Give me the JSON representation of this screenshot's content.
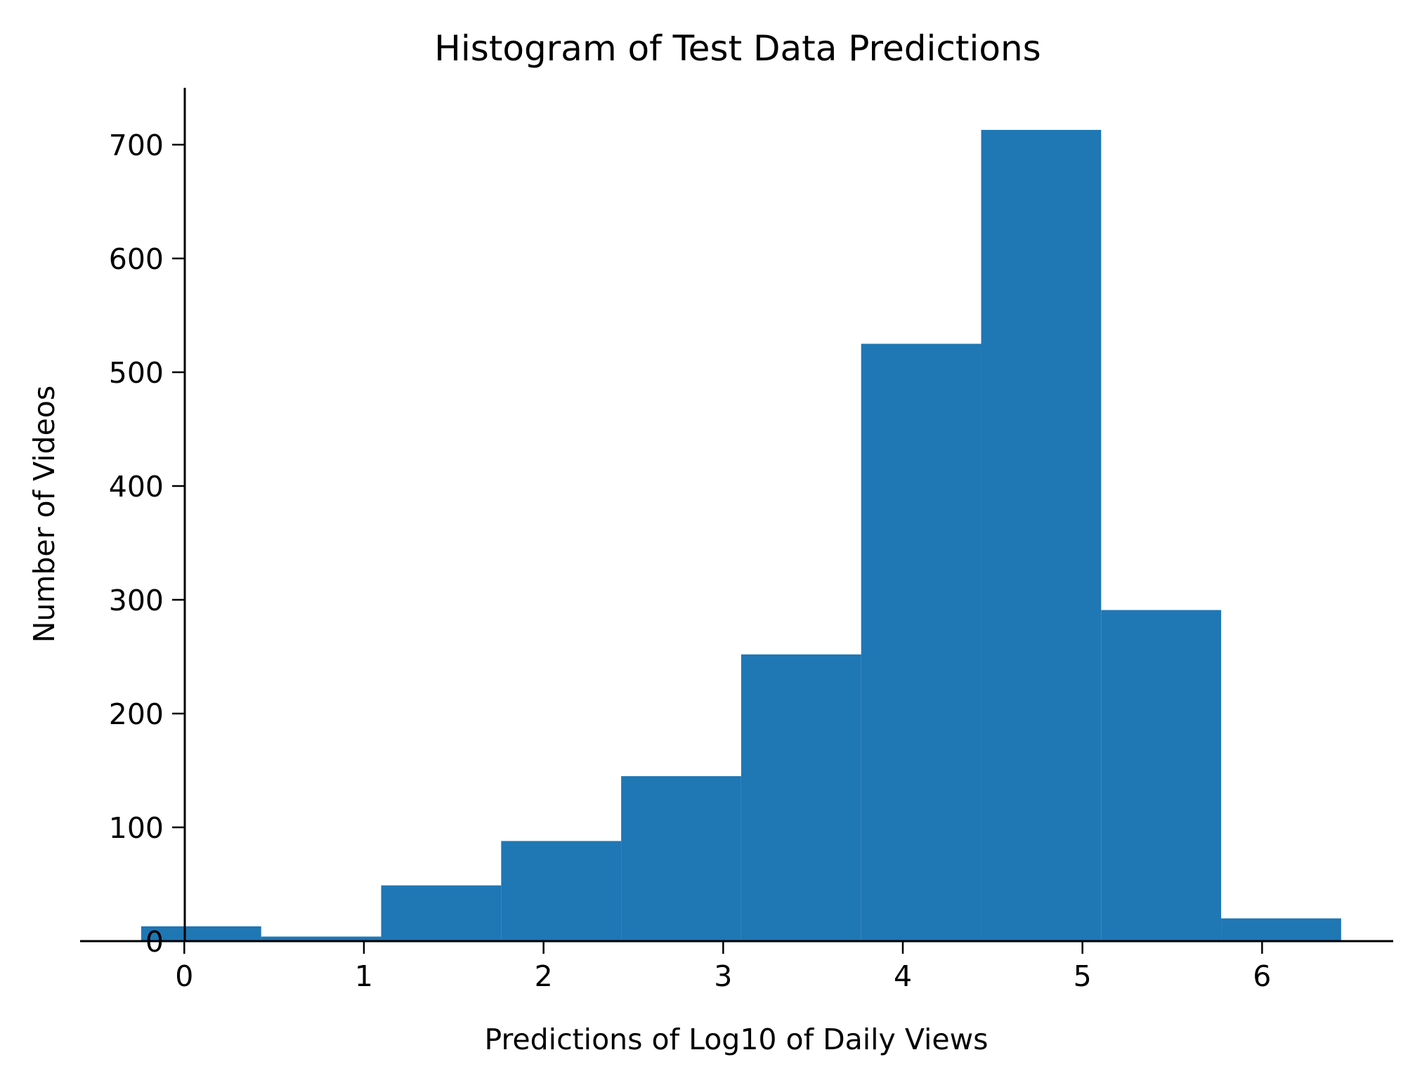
{
  "chart_data": {
    "type": "bar",
    "title": "Histogram of Test Data Predictions",
    "xlabel": "Predictions of Log10 of Daily Views",
    "ylabel": "Number of Videos",
    "xlim": [
      -0.58,
      6.73
    ],
    "ylim": [
      0,
      750
    ],
    "bin_edges": [
      -0.24,
      0.428,
      1.096,
      1.764,
      2.432,
      3.1,
      3.768,
      4.436,
      5.104,
      5.772,
      6.44
    ],
    "values": [
      13,
      4,
      49,
      88,
      145,
      252,
      525,
      713,
      291,
      20
    ],
    "x_ticks": [
      {
        "value": 0,
        "label": "0"
      },
      {
        "value": 1,
        "label": "1"
      },
      {
        "value": 2,
        "label": "2"
      },
      {
        "value": 3,
        "label": "3"
      },
      {
        "value": 4,
        "label": "4"
      },
      {
        "value": 5,
        "label": "5"
      },
      {
        "value": 6,
        "label": "6"
      }
    ],
    "y_ticks": [
      {
        "value": 0,
        "label": "0"
      },
      {
        "value": 100,
        "label": "100"
      },
      {
        "value": 200,
        "label": "200"
      },
      {
        "value": 300,
        "label": "300"
      },
      {
        "value": 400,
        "label": "400"
      },
      {
        "value": 500,
        "label": "500"
      },
      {
        "value": 600,
        "label": "600"
      },
      {
        "value": 700,
        "label": "700"
      }
    ],
    "bar_color": "#1f77b4",
    "grid": false,
    "legend": "none"
  }
}
